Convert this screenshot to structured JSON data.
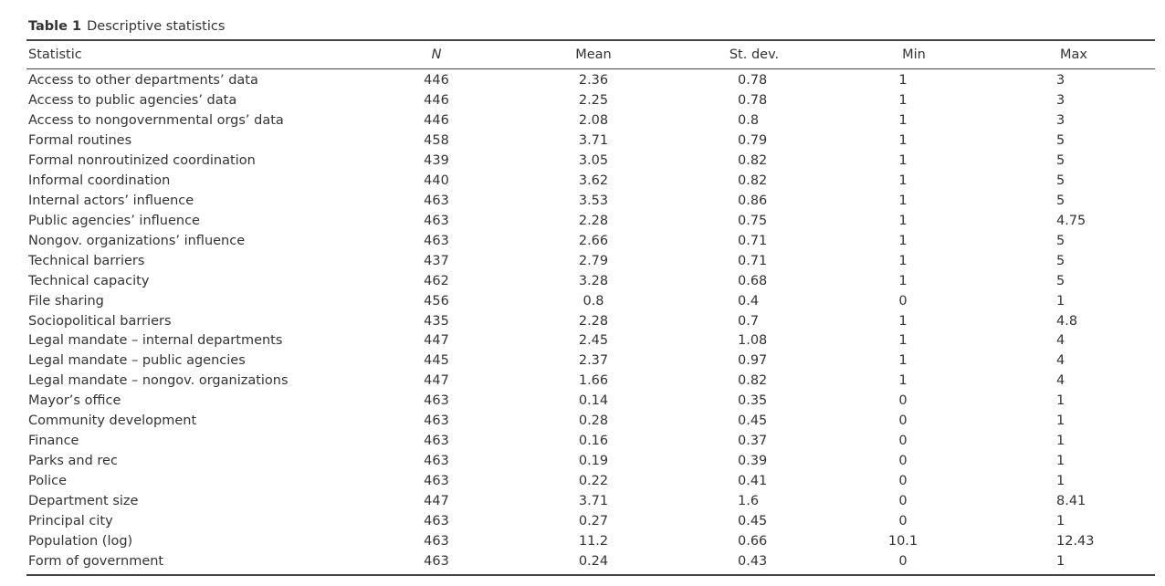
{
  "caption": {
    "label": "Table 1",
    "title": "Descriptive statistics"
  },
  "table": {
    "headers": [
      "Statistic",
      "N",
      "Mean",
      "St. dev.",
      "Min",
      "Max"
    ],
    "rows": [
      [
        "Access to other departments’ data",
        "446",
        "2.36",
        "0.78",
        "1",
        "3"
      ],
      [
        "Access to public agencies’ data",
        "446",
        "2.25",
        "0.78",
        "1",
        "3"
      ],
      [
        "Access to nongovernmental orgs’ data",
        "446",
        "2.08",
        "0.8",
        "1",
        "3"
      ],
      [
        "Formal routines",
        "458",
        "3.71",
        "0.79",
        "1",
        "5"
      ],
      [
        "Formal nonroutinized coordination",
        "439",
        "3.05",
        "0.82",
        "1",
        "5"
      ],
      [
        "Informal coordination",
        "440",
        "3.62",
        "0.82",
        "1",
        "5"
      ],
      [
        "Internal actors’ influence",
        "463",
        "3.53",
        "0.86",
        "1",
        "5"
      ],
      [
        "Public agencies’ influence",
        "463",
        "2.28",
        "0.75",
        "1",
        "4.75"
      ],
      [
        "Nongov. organizations’ influence",
        "463",
        "2.66",
        "0.71",
        "1",
        "5"
      ],
      [
        "Technical barriers",
        "437",
        "2.79",
        "0.71",
        "1",
        "5"
      ],
      [
        "Technical capacity",
        "462",
        "3.28",
        "0.68",
        "1",
        "5"
      ],
      [
        "File sharing",
        "456",
        "0.8",
        "0.4",
        "0",
        "1"
      ],
      [
        "Sociopolitical barriers",
        "435",
        "2.28",
        "0.7",
        "1",
        "4.8"
      ],
      [
        "Legal mandate – internal departments",
        "447",
        "2.45",
        "1.08",
        "1",
        "4"
      ],
      [
        "Legal mandate – public agencies",
        "445",
        "2.37",
        "0.97",
        "1",
        "4"
      ],
      [
        "Legal mandate – nongov. organizations",
        "447",
        "1.66",
        "0.82",
        "1",
        "4"
      ],
      [
        "Mayor’s office",
        "463",
        "0.14",
        "0.35",
        "0",
        "1"
      ],
      [
        "Community development",
        "463",
        "0.28",
        "0.45",
        "0",
        "1"
      ],
      [
        "Finance",
        "463",
        "0.16",
        "0.37",
        "0",
        "1"
      ],
      [
        "Parks and rec",
        "463",
        "0.19",
        "0.39",
        "0",
        "1"
      ],
      [
        "Police",
        "463",
        "0.22",
        "0.41",
        "0",
        "1"
      ],
      [
        "Department size",
        "447",
        "3.71",
        "1.6",
        "0",
        "8.41"
      ],
      [
        "Principal city",
        "463",
        "0.27",
        "0.45",
        "0",
        "1"
      ],
      [
        "Population (log)",
        "463",
        "11.2",
        "0.66",
        "10.1",
        "12.43"
      ],
      [
        "Form of government",
        "463",
        "0.24",
        "0.43",
        "0",
        "1"
      ]
    ]
  }
}
